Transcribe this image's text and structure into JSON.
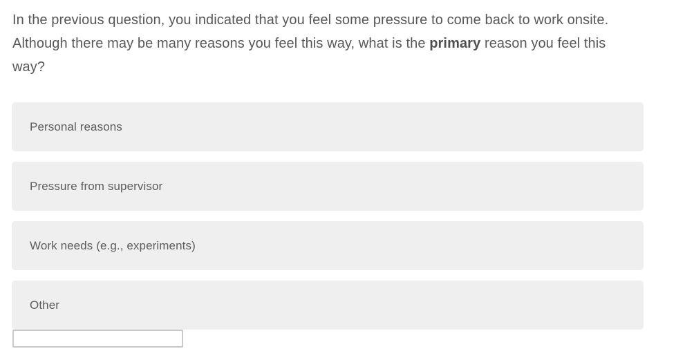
{
  "question": {
    "text_before": "In the previous question, you indicated that you feel some pressure to come back to work onsite. Although there may be many reasons you feel this way, what is the ",
    "bold_word": "primary",
    "text_after": " reason you feel this way?"
  },
  "choices": [
    {
      "label": "Personal reasons"
    },
    {
      "label": "Pressure from supervisor"
    },
    {
      "label": "Work needs (e.g., experiments)"
    },
    {
      "label": "Other"
    }
  ],
  "other_input": {
    "value": "",
    "placeholder": ""
  },
  "colors": {
    "page_bg": "#ffffff",
    "choice_bg": "#efefef",
    "question_text": "#575757",
    "choice_text": "#5c5c5c",
    "input_border": "#c8c8ce"
  }
}
